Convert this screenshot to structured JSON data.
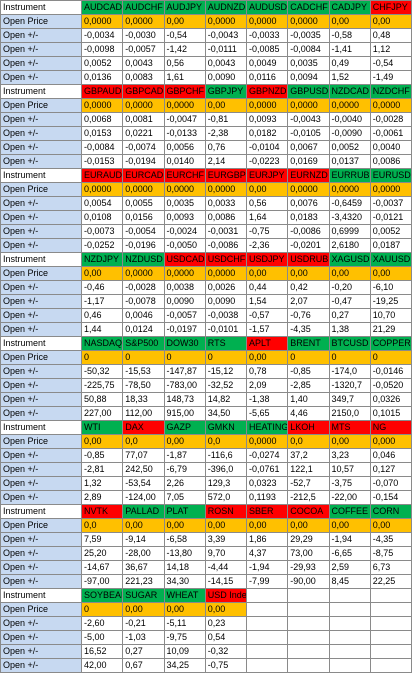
{
  "colors": {
    "green": "#00b050",
    "red": "#ff0000",
    "price": "#ffc000",
    "label": "#c7d9f1"
  },
  "row_labels": {
    "instrument": "Instrument",
    "price": "Open Price",
    "change": "Open +/-"
  },
  "blocks": [
    {
      "instruments": [
        {
          "name": "AUDCAD",
          "color": "green"
        },
        {
          "name": "AUDCHF",
          "color": "green"
        },
        {
          "name": "AUDJPY",
          "color": "green"
        },
        {
          "name": "AUDNZD",
          "color": "green"
        },
        {
          "name": "AUDUSD",
          "color": "green"
        },
        {
          "name": "CADCHF",
          "color": "green"
        },
        {
          "name": "CADJPY",
          "color": "green"
        },
        {
          "name": "CHFJPY",
          "color": "red"
        }
      ],
      "price": [
        "0,0000",
        "0,0000",
        "0,00",
        "0,0000",
        "0,0000",
        "0,0000",
        "0,00",
        "0,00"
      ],
      "changes": [
        [
          "-0,0034",
          "-0,0030",
          "-0,54",
          "-0,0043",
          "-0,0033",
          "-0,0035",
          "-0,58",
          "0,48"
        ],
        [
          "-0,0098",
          "-0,0057",
          "-1,42",
          "-0,0111",
          "-0,0085",
          "-0,0084",
          "-1,41",
          "1,12"
        ],
        [
          "0,0052",
          "0,0043",
          "0,56",
          "0,0043",
          "0,0049",
          "0,0035",
          "0,49",
          "-0,54"
        ],
        [
          "0,0136",
          "0,0083",
          "1,61",
          "0,0090",
          "0,0116",
          "0,0094",
          "1,52",
          "-1,49"
        ]
      ]
    },
    {
      "instruments": [
        {
          "name": "GBPAUD",
          "color": "red"
        },
        {
          "name": "GBPCAD",
          "color": "red"
        },
        {
          "name": "GBPCHF",
          "color": "red"
        },
        {
          "name": "GBPJPY",
          "color": "green"
        },
        {
          "name": "GBPNZD",
          "color": "red"
        },
        {
          "name": "GBPUSD",
          "color": "green"
        },
        {
          "name": "NZDCAD",
          "color": "green"
        },
        {
          "name": "NZDCHF",
          "color": "green"
        }
      ],
      "price": [
        "0,0000",
        "0,0000",
        "0,0000",
        "0,00",
        "0,0000",
        "0,0000",
        "0,0000",
        "0,0000"
      ],
      "changes": [
        [
          "0,0068",
          "0,0081",
          "-0,0047",
          "-0,81",
          "0,0093",
          "-0,0043",
          "-0,0040",
          "-0,0028"
        ],
        [
          "0,0153",
          "0,0221",
          "-0,0133",
          "-2,38",
          "0,0182",
          "-0,0105",
          "-0,0090",
          "-0,0061"
        ],
        [
          "-0,0084",
          "-0,0074",
          "0,0056",
          "0,76",
          "-0,0104",
          "0,0067",
          "0,0052",
          "0,0040"
        ],
        [
          "-0,0153",
          "-0,0194",
          "0,0140",
          "2,14",
          "-0,0223",
          "0,0169",
          "0,0137",
          "0,0086"
        ]
      ]
    },
    {
      "instruments": [
        {
          "name": "EURAUD",
          "color": "red"
        },
        {
          "name": "EURCAD",
          "color": "red"
        },
        {
          "name": "EURCHF",
          "color": "red"
        },
        {
          "name": "EURGBP",
          "color": "red"
        },
        {
          "name": "EURJPY",
          "color": "red"
        },
        {
          "name": "EURNZD",
          "color": "red"
        },
        {
          "name": "EURRUB",
          "color": "green"
        },
        {
          "name": "EURUSD",
          "color": "green"
        }
      ],
      "price": [
        "0,0000",
        "0,0000",
        "0,0000",
        "0,0000",
        "0,00",
        "0,0000",
        "0,0000",
        "0,0000"
      ],
      "changes": [
        [
          "0,0054",
          "0,0055",
          "0,0035",
          "0,0033",
          "0,56",
          "0,0076",
          "-0,6459",
          "-0,0037"
        ],
        [
          "0,0108",
          "0,0156",
          "0,0093",
          "0,0086",
          "1,64",
          "0,0183",
          "-3,4320",
          "-0,0121"
        ],
        [
          "-0,0073",
          "-0,0054",
          "-0,0024",
          "-0,0031",
          "-0,75",
          "-0,0086",
          "0,6999",
          "0,0052"
        ],
        [
          "-0,0252",
          "-0,0196",
          "-0,0050",
          "-0,0086",
          "-2,36",
          "-0,0201",
          "2,6180",
          "0,0187"
        ]
      ]
    },
    {
      "instruments": [
        {
          "name": "NZDJPY",
          "color": "green"
        },
        {
          "name": "NZDUSD",
          "color": "green"
        },
        {
          "name": "USDCAD",
          "color": "red"
        },
        {
          "name": "USDCHF",
          "color": "red"
        },
        {
          "name": "USDJPY",
          "color": "red"
        },
        {
          "name": "USDRUB",
          "color": "red"
        },
        {
          "name": "XAGUSD",
          "color": "green"
        },
        {
          "name": "XAUUSD",
          "color": "green"
        }
      ],
      "price": [
        "0,00",
        "0,0000",
        "0,0000",
        "0,0000",
        "0,00",
        "0,00",
        "0,00",
        "0,00"
      ],
      "changes": [
        [
          "-0,46",
          "-0,0028",
          "0,0038",
          "0,0026",
          "0,44",
          "0,42",
          "-0,20",
          "-6,10"
        ],
        [
          "-1,17",
          "-0,0078",
          "0,0090",
          "0,0090",
          "1,54",
          "2,07",
          "-0,47",
          "-19,25"
        ],
        [
          "0,46",
          "0,0046",
          "-0,0057",
          "-0,0038",
          "-0,57",
          "-0,76",
          "0,27",
          "10,70"
        ],
        [
          "1,44",
          "0,0124",
          "-0,0197",
          "-0,0101",
          "-1,57",
          "-4,35",
          "1,38",
          "21,29"
        ]
      ]
    },
    {
      "instruments": [
        {
          "name": "NASDAQ",
          "color": "green"
        },
        {
          "name": "S&P500",
          "color": "green"
        },
        {
          "name": "DOW30",
          "color": "green"
        },
        {
          "name": "RTS",
          "color": "green"
        },
        {
          "name": "APLT",
          "color": "red"
        },
        {
          "name": "BRENT",
          "color": "green"
        },
        {
          "name": "BTCUSD",
          "color": "green"
        },
        {
          "name": "COPPER",
          "color": "green"
        }
      ],
      "price": [
        "0",
        "0",
        "0",
        "0",
        "0,00",
        "0",
        "0",
        "0"
      ],
      "changes": [
        [
          "-50,32",
          "-15,53",
          "-147,87",
          "-15,12",
          "0,78",
          "-0,85",
          "-174,0",
          "-0,0146"
        ],
        [
          "-225,75",
          "-78,50",
          "-783,00",
          "-32,52",
          "2,09",
          "-2,85",
          "-1320,7",
          "-0,0520"
        ],
        [
          "50,88",
          "18,33",
          "148,73",
          "14,82",
          "-1,38",
          "1,40",
          "349,7",
          "0,0326"
        ],
        [
          "227,00",
          "112,00",
          "915,00",
          "34,50",
          "-5,65",
          "4,46",
          "2150,0",
          "0,1015"
        ]
      ]
    },
    {
      "instruments": [
        {
          "name": "WTI",
          "color": "green"
        },
        {
          "name": "DAX",
          "color": "red"
        },
        {
          "name": "GAZP",
          "color": "green"
        },
        {
          "name": "GMKN",
          "color": "green"
        },
        {
          "name": "HEATING",
          "color": "green"
        },
        {
          "name": "LKOH",
          "color": "red"
        },
        {
          "name": "MTS",
          "color": "red"
        },
        {
          "name": "NG",
          "color": "red"
        }
      ],
      "price": [
        "0,00",
        "0,0",
        "0,00",
        "0,0",
        "0,0000",
        "0,0",
        "0,00",
        "0,000"
      ],
      "changes": [
        [
          "-0,85",
          "77,07",
          "-1,87",
          "-116,6",
          "-0,0274",
          "37,2",
          "3,23",
          "0,046"
        ],
        [
          "-2,81",
          "242,50",
          "-6,79",
          "-396,0",
          "-0,0761",
          "122,1",
          "10,57",
          "0,127"
        ],
        [
          "1,32",
          "-53,54",
          "2,26",
          "129,3",
          "0,0323",
          "-52,7",
          "-3,75",
          "-0,070"
        ],
        [
          "2,89",
          "-124,00",
          "7,05",
          "572,0",
          "0,1193",
          "-212,5",
          "-22,00",
          "-0,154"
        ]
      ]
    },
    {
      "instruments": [
        {
          "name": "NVTK",
          "color": "red"
        },
        {
          "name": "PALLAD",
          "color": "green"
        },
        {
          "name": "PLAT",
          "color": "green"
        },
        {
          "name": "ROSN",
          "color": "red"
        },
        {
          "name": "SBER",
          "color": "red"
        },
        {
          "name": "COCOA",
          "color": "red"
        },
        {
          "name": "COFFEE",
          "color": "green"
        },
        {
          "name": "CORN",
          "color": "green"
        }
      ],
      "price": [
        "0,0",
        "0,00",
        "0,00",
        "0,00",
        "0,00",
        "0,00",
        "0,00",
        "0,00"
      ],
      "changes": [
        [
          "7,59",
          "-9,14",
          "-6,58",
          "3,39",
          "1,86",
          "29,29",
          "-1,94",
          "-4,35"
        ],
        [
          "25,20",
          "-28,00",
          "-13,80",
          "9,70",
          "4,37",
          "73,00",
          "-6,65",
          "-8,75"
        ],
        [
          "-14,67",
          "36,67",
          "14,18",
          "-4,44",
          "-1,94",
          "-29,93",
          "2,59",
          "6,73"
        ],
        [
          "-97,00",
          "221,23",
          "34,30",
          "-14,15",
          "-7,99",
          "-90,00",
          "8,45",
          "22,25"
        ]
      ]
    },
    {
      "instruments": [
        {
          "name": "SOYBEAN",
          "color": "green"
        },
        {
          "name": "SUGAR",
          "color": "green"
        },
        {
          "name": "WHEAT",
          "color": "green"
        },
        {
          "name": "USD Index",
          "color": "red"
        }
      ],
      "price": [
        "0",
        "0,00",
        "0,00",
        "0,00"
      ],
      "changes": [
        [
          "-2,60",
          "-0,21",
          "-5,11",
          "0,23"
        ],
        [
          "-5,00",
          "-1,03",
          "-9,75",
          "0,54"
        ],
        [
          "16,52",
          "0,27",
          "10,09",
          "-0,32"
        ],
        [
          "42,00",
          "0,67",
          "34,25",
          "-0,75"
        ]
      ]
    }
  ]
}
